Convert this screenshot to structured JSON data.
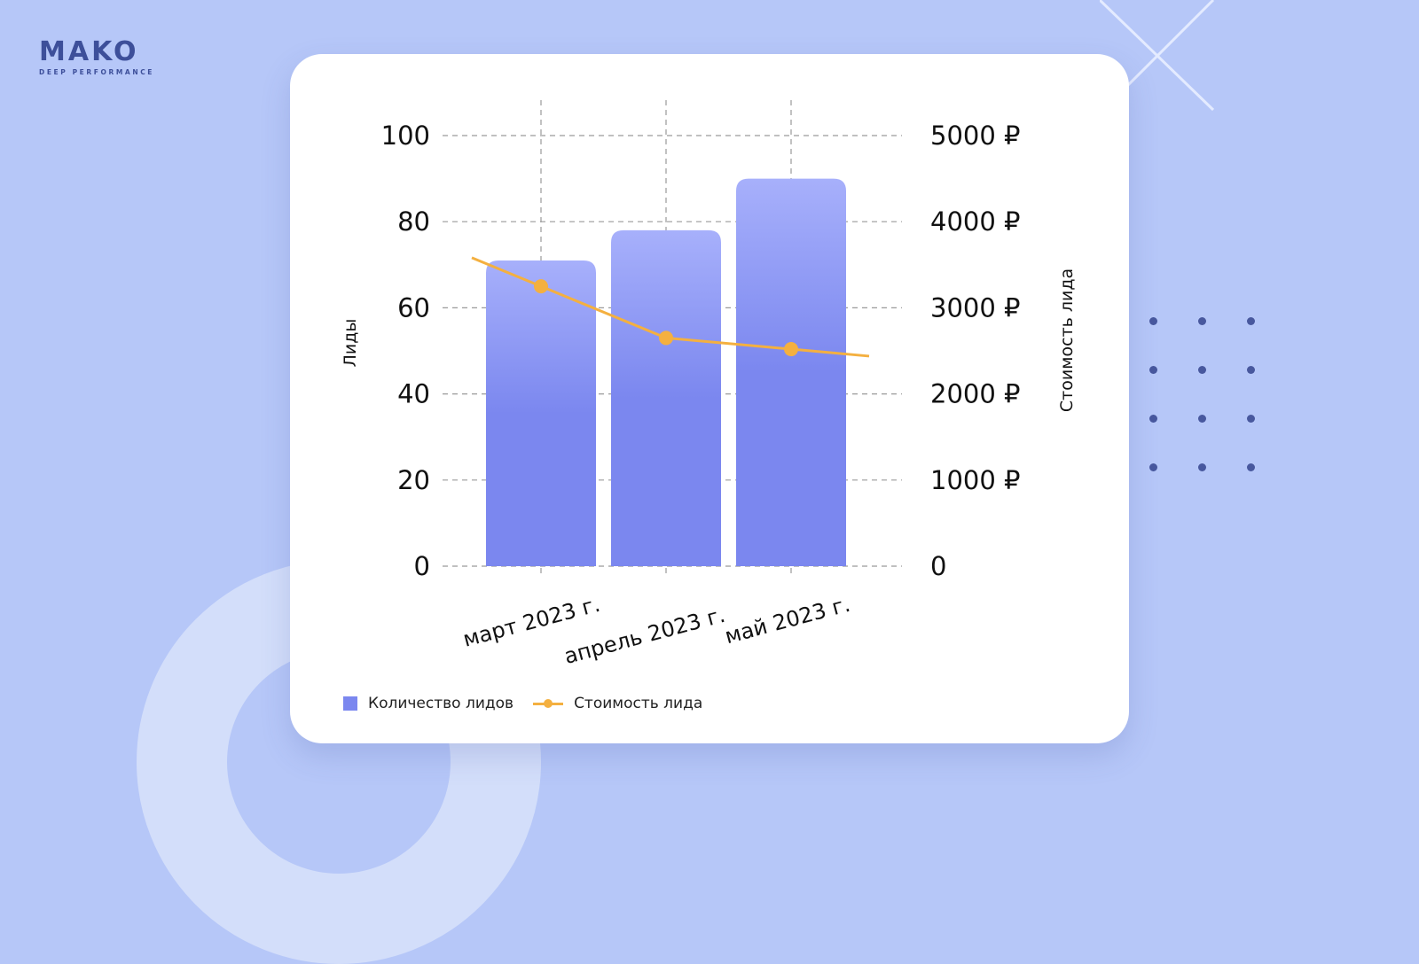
{
  "brand": {
    "name": "MAKO",
    "tagline": "DEEP PERFORMANCE"
  },
  "colors": {
    "background": "#b6c7f8",
    "bar_top": "#a7b0fb",
    "bar_bottom": "#7b87ef",
    "line": "#f4b040",
    "dots": "#48589e"
  },
  "chart_data": {
    "type": "bar",
    "categories": [
      "март 2023 г.",
      "апрель 2023 г.",
      "май 2023 г."
    ],
    "series": [
      {
        "name": "Количество лидов",
        "type": "bar",
        "axis": "left",
        "values": [
          71,
          78,
          90
        ]
      },
      {
        "name": "Стоимость лида",
        "type": "line",
        "axis": "right",
        "values": [
          3250,
          2650,
          2520
        ]
      }
    ],
    "left_axis": {
      "label": "Лиды",
      "ticks": [
        "0",
        "20",
        "40",
        "60",
        "80",
        "100"
      ],
      "range": [
        0,
        100
      ]
    },
    "right_axis": {
      "label": "Стоимость лида",
      "ticks": [
        "0",
        "1000 ₽",
        "2000 ₽",
        "3000 ₽",
        "4000 ₽",
        "5000 ₽"
      ],
      "range": [
        0,
        5000
      ]
    },
    "grid": true,
    "legend_position": "bottom-left"
  }
}
